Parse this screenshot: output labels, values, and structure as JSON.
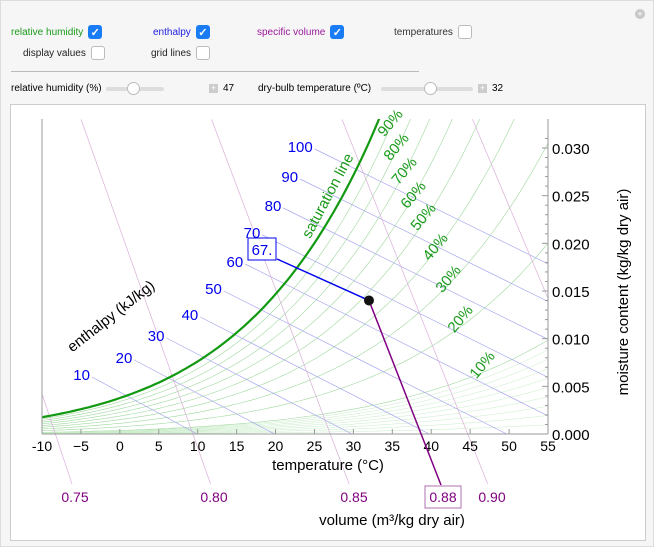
{
  "controls": {
    "relative_humidity": {
      "label": "relative humidity",
      "checked": true,
      "color": "#1a9a1a"
    },
    "enthalpy": {
      "label": "enthalpy",
      "checked": true,
      "color": "#2020e0"
    },
    "specific_volume": {
      "label": "specific volume",
      "checked": true,
      "color": "#9a1a9a"
    },
    "temperatures": {
      "label": "temperatures",
      "checked": false
    },
    "display_values": {
      "label": "display values",
      "checked": false
    },
    "grid_lines": {
      "label": "grid lines",
      "checked": false
    },
    "rh_slider": {
      "label": "relative humidity (%)",
      "value": "47",
      "fraction": 0.47
    },
    "temp_slider": {
      "label": "dry-bulb temperature (ºC)",
      "value": "32",
      "fraction": 0.53
    },
    "checkmark": "✓",
    "plus": "+"
  },
  "chart_data": {
    "type": "line",
    "xlabel": "temperature (°C)",
    "ylabel": "moisture content (kg/kg dry air)",
    "xlim": [
      -10,
      55
    ],
    "ylim": [
      0,
      0.0315
    ],
    "x_ticks": [
      "-10",
      "−5",
      "0",
      "5",
      "10",
      "15",
      "20",
      "25",
      "30",
      "35",
      "40",
      "45",
      "50",
      "55"
    ],
    "y_ticks": [
      "0.000",
      "0.005",
      "0.010",
      "0.015",
      "0.020",
      "0.025",
      "0.030"
    ],
    "saturation_label": "saturation line",
    "rh_labels": [
      "10%",
      "20%",
      "30%",
      "40%",
      "50%",
      "60%",
      "70%",
      "80%",
      "90%"
    ],
    "enthalpy_axis_label": "enthalpy (kJ/kg)",
    "enthalpy_labels": [
      "10",
      "20",
      "30",
      "40",
      "50",
      "60",
      "70",
      "80",
      "90",
      "100"
    ],
    "volume_axis_label": "volume (m³/kg dry air)",
    "volume_labels": [
      "0.75",
      "0.80",
      "0.85",
      "0.90"
    ],
    "state_point": {
      "temperature": 32,
      "relative_humidity": 47,
      "enthalpy_label": "67.",
      "volume_label": "0.88"
    },
    "colors": {
      "rh": "#1a9a1a",
      "enthalpy": "#0000ee",
      "volume": "#800080"
    }
  }
}
